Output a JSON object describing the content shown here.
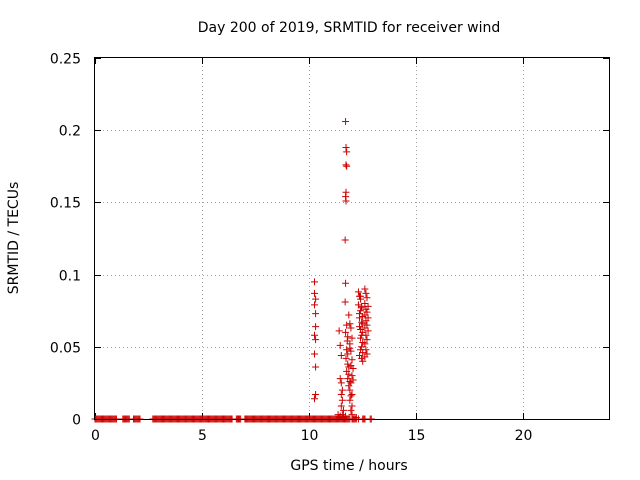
{
  "chart_data": {
    "type": "scatter",
    "title": "Day 200 of 2019, SRMTID for receiver wind",
    "xlabel": "GPS time / hours",
    "ylabel": "SRMTID / TECUs",
    "xlim": [
      0,
      24
    ],
    "ylim": [
      0,
      0.25
    ],
    "xticks": [
      0,
      5,
      10,
      15,
      20
    ],
    "xtick_labels": [
      "0",
      "5",
      "10",
      "15",
      "20"
    ],
    "yticks": [
      0,
      0.05,
      0.1,
      0.15,
      0.2,
      0.25
    ],
    "ytick_labels": [
      "0",
      "0.05",
      "0.1",
      "0.15",
      "0.2",
      "0.25"
    ],
    "grid": true,
    "marker": "+",
    "color": "#cc0000",
    "zero_segments": [
      [
        0.0,
        1.0
      ],
      [
        1.3,
        1.6
      ],
      [
        1.8,
        2.1
      ],
      [
        2.7,
        6.4
      ],
      [
        6.6,
        6.8
      ],
      [
        7.0,
        11.9
      ],
      [
        12.0,
        12.2
      ],
      [
        12.5,
        12.6
      ],
      [
        12.9,
        12.9
      ]
    ],
    "zero_step": 0.05,
    "points": [
      [
        10.25,
        0.095
      ],
      [
        10.25,
        0.087
      ],
      [
        10.3,
        0.083
      ],
      [
        10.25,
        0.079
      ],
      [
        10.3,
        0.073
      ],
      [
        10.3,
        0.064
      ],
      [
        10.25,
        0.058
      ],
      [
        10.3,
        0.055
      ],
      [
        10.25,
        0.045
      ],
      [
        10.3,
        0.036
      ],
      [
        10.3,
        0.017
      ],
      [
        10.25,
        0.014
      ],
      [
        11.4,
        0.061
      ],
      [
        11.45,
        0.051
      ],
      [
        11.5,
        0.044
      ],
      [
        11.45,
        0.028
      ],
      [
        11.5,
        0.025
      ],
      [
        11.55,
        0.02
      ],
      [
        11.5,
        0.017
      ],
      [
        11.55,
        0.013
      ],
      [
        11.5,
        0.009
      ],
      [
        11.6,
        0.006
      ],
      [
        11.55,
        0.003
      ],
      [
        11.6,
        0.001
      ],
      [
        11.45,
        0.002
      ],
      [
        11.7,
        0.206
      ],
      [
        11.72,
        0.188
      ],
      [
        11.75,
        0.185
      ],
      [
        11.72,
        0.176
      ],
      [
        11.75,
        0.175
      ],
      [
        11.72,
        0.157
      ],
      [
        11.7,
        0.154
      ],
      [
        11.72,
        0.151
      ],
      [
        11.68,
        0.124
      ],
      [
        11.7,
        0.094
      ],
      [
        11.68,
        0.081
      ],
      [
        11.75,
        0.065
      ],
      [
        11.7,
        0.06
      ],
      [
        11.8,
        0.057
      ],
      [
        11.78,
        0.054
      ],
      [
        11.75,
        0.048
      ],
      [
        11.8,
        0.045
      ],
      [
        11.72,
        0.042
      ],
      [
        11.8,
        0.038
      ],
      [
        11.75,
        0.033
      ],
      [
        11.85,
        0.031
      ],
      [
        11.8,
        0.028
      ],
      [
        11.9,
        0.026
      ],
      [
        11.85,
        0.023
      ],
      [
        11.9,
        0.02
      ],
      [
        11.95,
        0.016
      ],
      [
        11.9,
        0.013
      ],
      [
        12.0,
        0.009
      ],
      [
        11.95,
        0.006
      ],
      [
        12.0,
        0.003
      ],
      [
        11.9,
        0.049
      ],
      [
        11.95,
        0.047
      ],
      [
        12.0,
        0.041
      ],
      [
        11.95,
        0.037
      ],
      [
        12.05,
        0.035
      ],
      [
        12.0,
        0.03
      ],
      [
        12.05,
        0.027
      ],
      [
        11.95,
        0.025
      ],
      [
        11.85,
        0.072
      ],
      [
        11.9,
        0.066
      ],
      [
        11.95,
        0.063
      ],
      [
        12.0,
        0.056
      ],
      [
        11.9,
        0.052
      ],
      [
        11.85,
        0.036
      ],
      [
        12.0,
        0.017
      ],
      [
        12.3,
        0.088
      ],
      [
        12.35,
        0.085
      ],
      [
        12.4,
        0.083
      ],
      [
        12.3,
        0.079
      ],
      [
        12.45,
        0.077
      ],
      [
        12.4,
        0.075
      ],
      [
        12.35,
        0.073
      ],
      [
        12.5,
        0.071
      ],
      [
        12.45,
        0.067
      ],
      [
        12.35,
        0.064
      ],
      [
        12.4,
        0.062
      ],
      [
        12.5,
        0.06
      ],
      [
        12.45,
        0.058
      ],
      [
        12.4,
        0.056
      ],
      [
        12.5,
        0.053
      ],
      [
        12.45,
        0.05
      ],
      [
        12.4,
        0.048
      ],
      [
        12.5,
        0.046
      ],
      [
        12.35,
        0.044
      ],
      [
        12.45,
        0.042
      ],
      [
        12.5,
        0.04
      ],
      [
        12.4,
        0.085
      ],
      [
        12.45,
        0.078
      ],
      [
        12.35,
        0.07
      ],
      [
        12.5,
        0.066
      ],
      [
        12.6,
        0.09
      ],
      [
        12.65,
        0.087
      ],
      [
        12.7,
        0.084
      ],
      [
        12.6,
        0.08
      ],
      [
        12.75,
        0.078
      ],
      [
        12.65,
        0.076
      ],
      [
        12.7,
        0.074
      ],
      [
        12.6,
        0.072
      ],
      [
        12.75,
        0.07
      ],
      [
        12.65,
        0.068
      ],
      [
        12.7,
        0.065
      ],
      [
        12.6,
        0.063
      ],
      [
        12.75,
        0.061
      ],
      [
        12.65,
        0.058
      ],
      [
        12.7,
        0.055
      ],
      [
        12.6,
        0.052
      ],
      [
        12.65,
        0.048
      ],
      [
        12.7,
        0.045
      ],
      [
        12.6,
        0.043
      ],
      [
        11.35,
        0.003
      ],
      [
        11.4,
        0.001
      ],
      [
        11.7,
        0.002
      ],
      [
        12.2,
        0.001
      ],
      [
        12.3,
        0.0
      ],
      [
        12.6,
        0.0
      ],
      [
        12.85,
        0.0
      ]
    ]
  }
}
